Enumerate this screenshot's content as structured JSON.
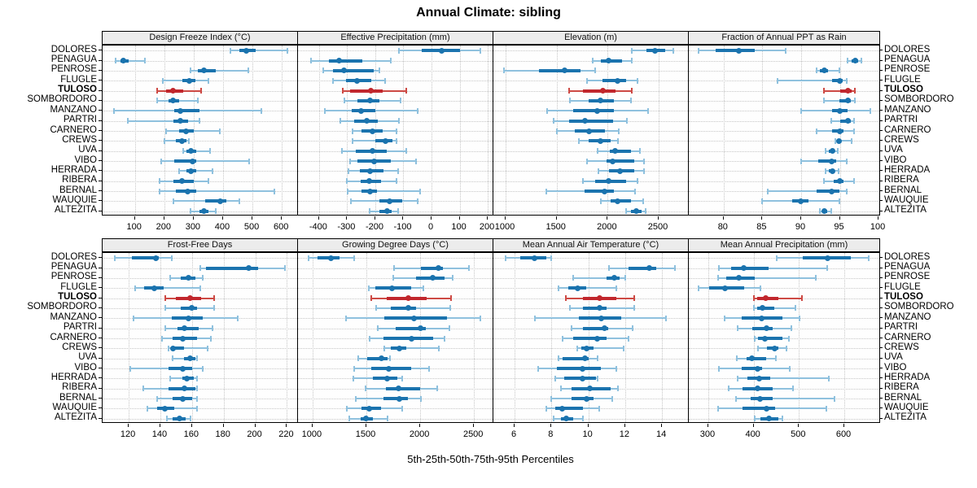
{
  "title": "Annual Climate: sibling",
  "caption": "5th-25th-50th-75th-95th Percentiles",
  "highlight_site": "TULOSO",
  "colors": {
    "series_blue": "#1a73ae",
    "series_blue_light": "#8fc1de",
    "highlight_red": "#c1272d",
    "highlight_red_light": "#cd4a44",
    "strip_bg": "#ececec",
    "grid": "#c6c6c6",
    "panel_border": "#000000"
  },
  "chart_data": {
    "type": "dotplot-percentiles",
    "percentile_labels": [
      "5th",
      "25th",
      "50th",
      "75th",
      "95th"
    ],
    "sites": [
      "DOLORES",
      "PENAGUA",
      "PENROSE",
      "FLUGLE",
      "TULOSO",
      "SOMBORDORO",
      "MANZANO",
      "PARTRI",
      "CARNERO",
      "CREWS",
      "UVA",
      "VIBO",
      "HERRADA",
      "RIBERA",
      "BERNAL",
      "WAUQUIE",
      "ALTEZITA"
    ],
    "panels": [
      {
        "title": "Design Freeze Index (°C)",
        "grid_row": 0,
        "grid_col": 0,
        "xlim": [
          -10,
          655
        ],
        "ticks": [
          100,
          200,
          300,
          400,
          500,
          600
        ],
        "values": [
          [
            425,
            455,
            478,
            510,
            618
          ],
          [
            35,
            50,
            62,
            78,
            135
          ],
          [
            290,
            315,
            335,
            375,
            485
          ],
          [
            195,
            262,
            285,
            305,
            350
          ],
          [
            175,
            205,
            230,
            265,
            325
          ],
          [
            175,
            215,
            230,
            250,
            315
          ],
          [
            30,
            235,
            255,
            320,
            530
          ],
          [
            75,
            230,
            255,
            280,
            320
          ],
          [
            205,
            250,
            275,
            300,
            390
          ],
          [
            200,
            240,
            260,
            275,
            285
          ],
          [
            265,
            275,
            290,
            310,
            355
          ],
          [
            190,
            235,
            295,
            310,
            490
          ],
          [
            250,
            275,
            290,
            310,
            365
          ],
          [
            185,
            230,
            260,
            300,
            350
          ],
          [
            185,
            240,
            280,
            310,
            575
          ],
          [
            230,
            340,
            390,
            410,
            455
          ],
          [
            290,
            320,
            335,
            350,
            375
          ]
        ]
      },
      {
        "title": "Effective Precipitation (mm)",
        "grid_row": 0,
        "grid_col": 1,
        "xlim": [
          -475,
          220
        ],
        "ticks": [
          -400,
          -300,
          -200,
          -100,
          0,
          100,
          200
        ],
        "values": [
          [
            -115,
            -35,
            35,
            100,
            175
          ],
          [
            -430,
            -365,
            -330,
            -245,
            -145
          ],
          [
            -385,
            -350,
            -310,
            -205,
            -185
          ],
          [
            -350,
            -305,
            -265,
            -215,
            -165
          ],
          [
            -315,
            -290,
            -215,
            -175,
            -90
          ],
          [
            -310,
            -265,
            -220,
            -185,
            -110
          ],
          [
            -380,
            -285,
            -250,
            -200,
            -50
          ],
          [
            -325,
            -275,
            -230,
            -190,
            -115
          ],
          [
            -280,
            -250,
            -210,
            -175,
            -125
          ],
          [
            -280,
            -200,
            -165,
            -140,
            -125
          ],
          [
            -320,
            -270,
            -210,
            -160,
            -90
          ],
          [
            -290,
            -265,
            -205,
            -145,
            -55
          ],
          [
            -295,
            -255,
            -220,
            -170,
            -120
          ],
          [
            -300,
            -252,
            -222,
            -179,
            -125
          ],
          [
            -298,
            -250,
            -220,
            -195,
            -42
          ],
          [
            -286,
            -185,
            -150,
            -104,
            -49
          ],
          [
            -219,
            -185,
            -157,
            -142,
            -118
          ]
        ]
      },
      {
        "title": "Elevation (m)",
        "grid_row": 0,
        "grid_col": 2,
        "xlim": [
          880,
          2795
        ],
        "ticks": [
          1000,
          1500,
          2000,
          2500
        ],
        "values": [
          [
            2240,
            2380,
            2460,
            2560,
            2640
          ],
          [
            1850,
            1930,
            2010,
            2140,
            2240
          ],
          [
            980,
            1330,
            1580,
            1730,
            1880
          ],
          [
            1800,
            1950,
            2100,
            2180,
            2290
          ],
          [
            1620,
            1760,
            1950,
            2080,
            2240
          ],
          [
            1630,
            1810,
            1930,
            2060,
            2230
          ],
          [
            1410,
            1660,
            1900,
            2060,
            2400
          ],
          [
            1470,
            1620,
            1780,
            2050,
            2190
          ],
          [
            1500,
            1680,
            1820,
            1970,
            2110
          ],
          [
            1720,
            1810,
            1930,
            2030,
            2100
          ],
          [
            1900,
            2020,
            2070,
            2230,
            2320
          ],
          [
            1800,
            1990,
            2050,
            2260,
            2360
          ],
          [
            1910,
            2010,
            2120,
            2260,
            2360
          ],
          [
            1760,
            1880,
            2010,
            2180,
            2290
          ],
          [
            1400,
            1770,
            1970,
            2060,
            2270
          ],
          [
            1930,
            2030,
            2100,
            2230,
            2350
          ],
          [
            2180,
            2230,
            2280,
            2330,
            2370
          ]
        ]
      },
      {
        "title": "Fraction of Annual PPT as Rain",
        "grid_row": 0,
        "grid_col": 3,
        "xlim": [
          75.5,
          100.2
        ],
        "ticks": [
          80,
          85,
          90,
          95,
          100
        ],
        "values": [
          [
            76.8,
            79,
            82,
            84,
            88
          ],
          [
            96,
            96.5,
            97,
            97.4,
            97.8
          ],
          [
            92,
            92.4,
            93,
            93.5,
            94.9
          ],
          [
            87,
            94,
            95,
            95.4,
            95.9
          ],
          [
            93,
            95,
            96,
            96.5,
            96.9
          ],
          [
            93,
            94.9,
            96,
            96.4,
            96.9
          ],
          [
            90,
            94,
            95,
            96,
            98.9
          ],
          [
            93.9,
            95,
            96,
            96.4,
            96.8
          ],
          [
            92,
            94,
            95,
            95.5,
            96.8
          ],
          [
            94.4,
            94.6,
            94.9,
            95.2,
            96.5
          ],
          [
            93.2,
            93.6,
            94,
            94.3,
            94.7
          ],
          [
            90,
            92.2,
            93.9,
            94.5,
            95.9
          ],
          [
            93.2,
            93.6,
            94,
            94.3,
            94.8
          ],
          [
            92.9,
            94.2,
            95,
            95.5,
            96.8
          ],
          [
            85.7,
            92,
            93.9,
            94.9,
            95.9
          ],
          [
            85,
            88.8,
            90,
            91,
            94.9
          ],
          [
            92.4,
            92.7,
            93,
            93.4,
            93.9
          ]
        ]
      },
      {
        "title": "Frost-Free Days",
        "grid_row": 1,
        "grid_col": 0,
        "xlim": [
          103.5,
          227
        ],
        "ticks": [
          120,
          140,
          160,
          180,
          200,
          220
        ],
        "values": [
          [
            111,
            122,
            137,
            139,
            147
          ],
          [
            165,
            169,
            196,
            202,
            219
          ],
          [
            146,
            153,
            158,
            162,
            167
          ],
          [
            124,
            130,
            136,
            142,
            165
          ],
          [
            143,
            150,
            159,
            166,
            174
          ],
          [
            143,
            153,
            160,
            163,
            174
          ],
          [
            123,
            147,
            158,
            167,
            189
          ],
          [
            143,
            151,
            155,
            164,
            173
          ],
          [
            141,
            148,
            154,
            163,
            172
          ],
          [
            145,
            147,
            148,
            155,
            170
          ],
          [
            148,
            155,
            159,
            162,
            163
          ],
          [
            121,
            145,
            154,
            160,
            167
          ],
          [
            146,
            154,
            157,
            161,
            163
          ],
          [
            129,
            145,
            155,
            162,
            163
          ],
          [
            138,
            148,
            154,
            160,
            163
          ],
          [
            132,
            138,
            143,
            149,
            163
          ],
          [
            144,
            148,
            152,
            156,
            159
          ]
        ]
      },
      {
        "title": "Growing Degree Days (°C)",
        "grid_row": 1,
        "grid_col": 1,
        "xlim": [
          865,
          2680
        ],
        "ticks": [
          1000,
          1500,
          2000,
          2500
        ],
        "values": [
          [
            967,
            1050,
            1170,
            1253,
            1390
          ],
          [
            1760,
            2010,
            2170,
            2210,
            2450
          ],
          [
            1750,
            1960,
            2120,
            2230,
            2300
          ],
          [
            1525,
            1580,
            1740,
            1920,
            2030
          ],
          [
            1545,
            1690,
            1890,
            2060,
            2290
          ],
          [
            1590,
            1730,
            1890,
            1960,
            2280
          ],
          [
            1310,
            1670,
            1940,
            2250,
            2560
          ],
          [
            1605,
            1770,
            2000,
            2050,
            2270
          ],
          [
            1530,
            1660,
            1920,
            2120,
            2230
          ],
          [
            1665,
            1730,
            1805,
            1870,
            2170
          ],
          [
            1425,
            1505,
            1640,
            1700,
            1720
          ],
          [
            1385,
            1545,
            1710,
            1920,
            2080
          ],
          [
            1380,
            1560,
            1690,
            1790,
            1835
          ],
          [
            1495,
            1680,
            1800,
            2000,
            2160
          ],
          [
            1405,
            1660,
            1805,
            1885,
            2010
          ],
          [
            1320,
            1455,
            1525,
            1640,
            1830
          ],
          [
            1340,
            1445,
            1495,
            1560,
            1695
          ]
        ]
      },
      {
        "title": "Mean Annual Air Temperature (°C)",
        "grid_row": 1,
        "grid_col": 2,
        "xlim": [
          4.85,
          15.45
        ],
        "ticks": [
          6,
          8,
          10,
          12,
          14
        ],
        "values": [
          [
            5.5,
            6.3,
            7.1,
            7.7,
            8.0
          ],
          [
            11.1,
            12.2,
            13.3,
            13.7,
            14.7
          ],
          [
            9.2,
            11.0,
            11.4,
            11.7,
            12.0
          ],
          [
            8.4,
            8.9,
            9.4,
            9.9,
            11.5
          ],
          [
            8.8,
            9.7,
            10.6,
            11.5,
            12.5
          ],
          [
            9.0,
            9.7,
            10.6,
            11.0,
            12.5
          ],
          [
            7.1,
            9.5,
            10.7,
            11.8,
            14.2
          ],
          [
            9.1,
            9.7,
            10.9,
            11.1,
            12.4
          ],
          [
            8.6,
            9.2,
            10.5,
            11.0,
            12.2
          ],
          [
            9.4,
            9.6,
            9.9,
            10.3,
            11.9
          ],
          [
            8.4,
            8.6,
            9.8,
            10.0,
            10.5
          ],
          [
            7.3,
            8.3,
            9.7,
            10.7,
            11.5
          ],
          [
            8.2,
            8.7,
            9.7,
            10.4,
            10.5
          ],
          [
            8.5,
            9.1,
            10.1,
            11.2,
            11.6
          ],
          [
            8.0,
            9.1,
            9.9,
            10.3,
            11.3
          ],
          [
            7.7,
            8.2,
            8.6,
            9.7,
            10.6
          ],
          [
            8.1,
            8.5,
            8.8,
            9.2,
            9.7
          ]
        ]
      },
      {
        "title": "Mean Annual Precipitation (mm)",
        "grid_row": 1,
        "grid_col": 3,
        "xlim": [
          257,
          679
        ],
        "ticks": [
          300,
          400,
          500,
          600
        ],
        "values": [
          [
            451,
            508,
            563,
            614,
            654
          ],
          [
            323,
            350,
            379,
            433,
            563
          ],
          [
            322,
            340,
            368,
            403,
            538
          ],
          [
            278,
            301,
            337,
            379,
            415
          ],
          [
            400,
            408,
            426,
            455,
            506
          ],
          [
            400,
            408,
            420,
            445,
            492
          ],
          [
            336,
            373,
            417,
            463,
            501
          ],
          [
            365,
            397,
            428,
            442,
            484
          ],
          [
            402,
            409,
            425,
            463,
            477
          ],
          [
            409,
            430,
            446,
            454,
            472
          ],
          [
            363,
            385,
            397,
            427,
            449
          ],
          [
            324,
            373,
            408,
            418,
            480
          ],
          [
            364,
            387,
            413,
            436,
            566
          ],
          [
            345,
            376,
            408,
            442,
            487
          ],
          [
            362,
            394,
            414,
            442,
            578
          ],
          [
            321,
            376,
            429,
            448,
            560
          ],
          [
            403,
            415,
            433,
            454,
            463
          ]
        ]
      }
    ]
  }
}
